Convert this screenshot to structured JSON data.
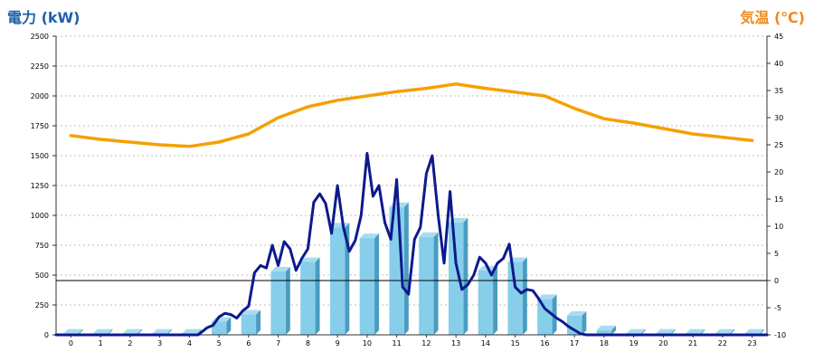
{
  "header": {
    "left_title": "電力 (kW)",
    "right_title": "気温 (℃)"
  },
  "chart_data": {
    "type": "bar",
    "categories": [
      "0",
      "1",
      "2",
      "3",
      "4",
      "5",
      "6",
      "7",
      "8",
      "9",
      "10",
      "11",
      "12",
      "13",
      "14",
      "15",
      "16",
      "17",
      "18",
      "19",
      "20",
      "21",
      "22",
      "23"
    ],
    "y_left": {
      "ylim": [
        0,
        2500
      ],
      "ticks": [
        "0",
        "250",
        "500",
        "750",
        "1000",
        "1250",
        "1500",
        "1750",
        "2000",
        "2250",
        "2500"
      ]
    },
    "y_right": {
      "ylim": [
        -10,
        45
      ],
      "ticks": [
        "-10",
        "-5",
        "0",
        "5",
        "10",
        "15",
        "20",
        "25",
        "30",
        "35",
        "40",
        "45"
      ]
    },
    "grid": true,
    "zero_line_temp": 0,
    "colors": {
      "bars": "#87ceeb",
      "bar_side": "#4a9cc0",
      "power_line": "#0d1a8c",
      "temperature_line": "#f5a000",
      "left_title": "#1f5fa8",
      "right_title": "#f08a1c"
    },
    "series": [
      {
        "kind": "bar",
        "axis": "left",
        "values": [
          10,
          10,
          10,
          10,
          10,
          110,
          170,
          530,
          610,
          900,
          810,
          1070,
          820,
          940,
          540,
          610,
          300,
          160,
          40,
          10,
          10,
          10,
          10,
          10
        ]
      },
      {
        "kind": "line",
        "axis": "right",
        "x": [
          0,
          1,
          2,
          3,
          4,
          5,
          6,
          7,
          8,
          9,
          10,
          11,
          12,
          13,
          14,
          15,
          16,
          17,
          18,
          19,
          20,
          21,
          22,
          23
        ],
        "values": [
          26.7,
          26,
          25.5,
          25,
          24.7,
          25.5,
          27,
          30,
          32,
          33.2,
          34,
          34.8,
          35.4,
          36.2,
          35.4,
          34.7,
          34,
          31.7,
          29.8,
          29,
          28,
          27,
          26.4,
          25.8
        ]
      },
      {
        "kind": "line",
        "axis": "left",
        "x": [
          4.3,
          4.6,
          4.8,
          5.0,
          5.2,
          5.4,
          5.6,
          5.8,
          6.0,
          6.2,
          6.4,
          6.6,
          6.8,
          7.0,
          7.2,
          7.4,
          7.6,
          7.8,
          8.0,
          8.2,
          8.4,
          8.6,
          8.8,
          9.0,
          9.2,
          9.4,
          9.6,
          9.8,
          10.0,
          10.2,
          10.4,
          10.6,
          10.8,
          11.0,
          11.2,
          11.4,
          11.6,
          11.8,
          12.0,
          12.2,
          12.4,
          12.6,
          12.8,
          13.0,
          13.2,
          13.4,
          13.6,
          13.8,
          14.0,
          14.2,
          14.4,
          14.6,
          14.8,
          15.0,
          15.2,
          15.4,
          15.6,
          15.8,
          16.0,
          16.2,
          16.4,
          16.6,
          16.8,
          17.0,
          17.2,
          17.4,
          17.6,
          17.8,
          18.0
        ],
        "values": [
          0,
          60,
          80,
          150,
          180,
          170,
          140,
          200,
          240,
          520,
          580,
          560,
          750,
          580,
          780,
          720,
          540,
          640,
          720,
          1110,
          1180,
          1100,
          850,
          1250,
          900,
          700,
          790,
          1000,
          1520,
          1160,
          1250,
          940,
          800,
          1300,
          400,
          340,
          800,
          900,
          1350,
          1500,
          1000,
          600,
          1200,
          600,
          380,
          420,
          500,
          650,
          600,
          500,
          600,
          640,
          760,
          400,
          350,
          380,
          370,
          300,
          220,
          180,
          140,
          110,
          70,
          40,
          10,
          0,
          0,
          0,
          0
        ]
      }
    ]
  }
}
